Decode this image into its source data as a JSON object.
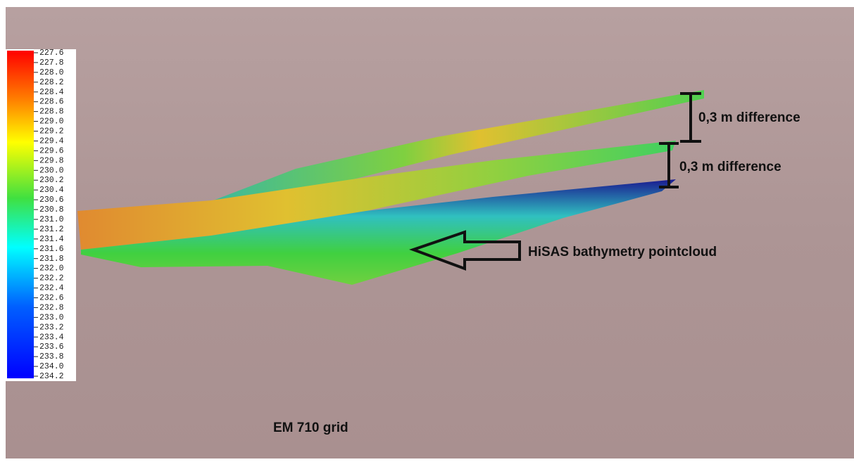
{
  "colorbar": {
    "labels": [
      "227.6",
      "227.8",
      "228.0",
      "228.2",
      "228.4",
      "228.6",
      "228.8",
      "229.0",
      "229.2",
      "229.4",
      "229.6",
      "229.8",
      "230.0",
      "230.2",
      "230.4",
      "230.6",
      "230.8",
      "231.0",
      "231.2",
      "231.4",
      "231.6",
      "231.8",
      "232.0",
      "232.2",
      "232.4",
      "232.6",
      "232.8",
      "233.0",
      "233.2",
      "233.4",
      "233.6",
      "233.8",
      "234.0",
      "234.2"
    ]
  },
  "annotations": {
    "difference_top": "0,3 m difference",
    "difference_bottom": "0,3 m difference",
    "pointcloud": "HiSAS bathymetry pointcloud",
    "grid": "EM 710 grid"
  }
}
